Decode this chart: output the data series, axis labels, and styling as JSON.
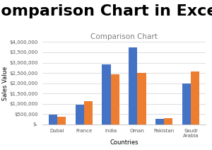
{
  "title_main": "Comparison Chart in Excel",
  "title_chart": "Comparison Chart",
  "xlabel": "Countries",
  "ylabel": "Sales Value",
  "categories": [
    "Dubai",
    "France",
    "India",
    "Oman",
    "Pakistan",
    "Saudi\nArabia"
  ],
  "series1": [
    480000,
    950000,
    2900000,
    3750000,
    280000,
    2000000
  ],
  "series2": [
    360000,
    1130000,
    2450000,
    2500000,
    310000,
    2580000
  ],
  "color1": "#4472C4",
  "color2": "#ED7D31",
  "ylim": [
    0,
    4000000
  ],
  "yticks": [
    0,
    500000,
    1000000,
    1500000,
    2000000,
    2500000,
    3000000,
    3500000,
    4000000
  ],
  "title_main_fontsize": 16,
  "title_chart_fontsize": 7.5,
  "axis_label_fontsize": 6,
  "tick_fontsize": 5,
  "background_color": "#FFFFFF",
  "title_main_color": "#000000",
  "title_chart_color": "#808080",
  "grid_color": "#D0D0D0",
  "bar_width": 0.32
}
